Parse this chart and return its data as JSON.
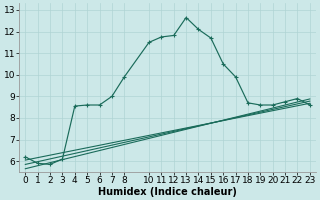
{
  "xlabel": "Humidex (Indice chaleur)",
  "background_color": "#cce8e8",
  "line_color": "#1a6b5a",
  "ylim": [
    5.5,
    13.3
  ],
  "xlim": [
    -0.5,
    23.5
  ],
  "yticks": [
    6,
    7,
    8,
    9,
    10,
    11,
    12,
    13
  ],
  "xticks": [
    0,
    1,
    2,
    3,
    4,
    5,
    6,
    7,
    8,
    10,
    11,
    12,
    13,
    14,
    15,
    16,
    17,
    18,
    19,
    20,
    21,
    22,
    23
  ],
  "xtick_labels": [
    "0",
    "1",
    "2",
    "3",
    "4",
    "5",
    "6",
    "7",
    "8",
    "10",
    "11",
    "12",
    "13",
    "14",
    "15",
    "16",
    "17",
    "18",
    "19",
    "20",
    "21",
    "22",
    "23"
  ],
  "series1_x": [
    0,
    1,
    2,
    3,
    4,
    5,
    6,
    7,
    8,
    10,
    11,
    12,
    13,
    14,
    15,
    16,
    17,
    18,
    19,
    20,
    21,
    22,
    23
  ],
  "series1_y": [
    6.2,
    5.9,
    5.85,
    6.1,
    8.55,
    8.6,
    8.6,
    9.0,
    9.9,
    11.5,
    11.75,
    11.82,
    12.65,
    12.1,
    11.7,
    10.5,
    9.9,
    8.7,
    8.6,
    8.6,
    8.75,
    8.9,
    8.6
  ],
  "series2_x": [
    0,
    23
  ],
  "series2_y": [
    6.05,
    8.68
  ],
  "series3_x": [
    0,
    23
  ],
  "series3_y": [
    5.85,
    8.78
  ],
  "series4_x": [
    0,
    23
  ],
  "series4_y": [
    5.65,
    8.88
  ],
  "grid_color": "#b0d4d4",
  "tick_label_fontsize": 6.5,
  "xlabel_fontsize": 7
}
